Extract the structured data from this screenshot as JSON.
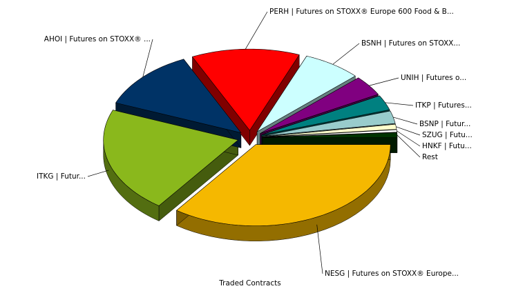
{
  "chart_data": {
    "type": "pie3d",
    "title": "Traded Contracts",
    "categories": [
      "NESG | Futures on STOXX® Europe...",
      "ITKG | Futur...",
      "AHOI | Futures on STOXX® ...",
      "PERH | Futures on STOXX® Europe 600 Food & B...",
      "BSNH | Futures on STOXX...",
      "UNIH | Futures o...",
      "ITKP | Futures...",
      "BSNP | Futur...",
      "SZUG | Futu...",
      "HNKF | Futu...",
      "Rest"
    ],
    "values": [
      35,
      21,
      12,
      13,
      7,
      4,
      3,
      2.5,
      1,
      0.5,
      1
    ],
    "colors": [
      "#f5b800",
      "#8ab81c",
      "#003366",
      "#ff0000",
      "#ccffff",
      "#800080",
      "#008080",
      "#99cccc",
      "#ffffcc",
      "#ffffff",
      "#003300"
    ]
  }
}
